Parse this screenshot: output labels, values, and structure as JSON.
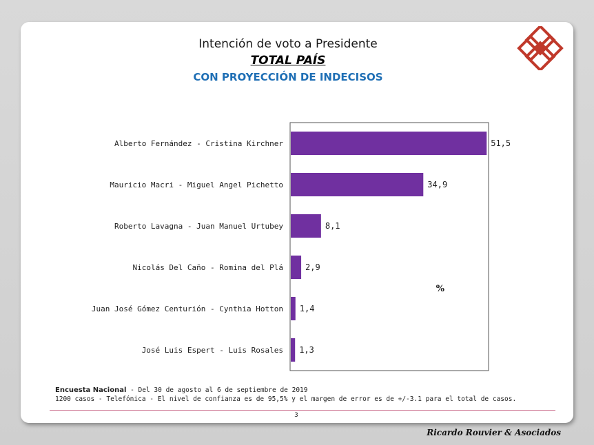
{
  "header": {
    "title": "Intención de voto a Presidente",
    "subtitle": "TOTAL PAÍS",
    "subtitle2": "CON PROYECCIÓN DE INDECISOS"
  },
  "colors": {
    "bar": "#7030a0",
    "accent": "#c0392b",
    "subtitle2": "#1f6fb5"
  },
  "chart_data": {
    "type": "bar",
    "orientation": "horizontal",
    "categories": [
      "Alberto Fernández - Cristina Kirchner",
      "Mauricio Macri - Miguel Angel Pichetto",
      "Roberto Lavagna - Juan Manuel Urtubey",
      "Nicolás Del Caño - Romina del Plá",
      "Juan José Gómez Centurión - Cynthia  Hotton",
      "José Luis Espert - Luis Rosales"
    ],
    "values": [
      51.5,
      34.9,
      8.1,
      2.9,
      1.4,
      1.3
    ],
    "value_labels": [
      "51,5",
      "34,9",
      "8,1",
      "2,9",
      "1,4",
      "1,3"
    ],
    "unit_label": "%",
    "xlim": [
      0,
      52
    ],
    "grid": false
  },
  "footer": {
    "lead": "Encuesta Nacional",
    "line1": " - Del 30 de agosto al 6 de septiembre de 2019",
    "line2": "1200 casos - Telefónica  - El nivel de confianza es de 95,5% y el margen de error es de +/-3.1 para el total de casos.",
    "page": "3",
    "brand": "Ricardo Rouvier & Asociados"
  }
}
